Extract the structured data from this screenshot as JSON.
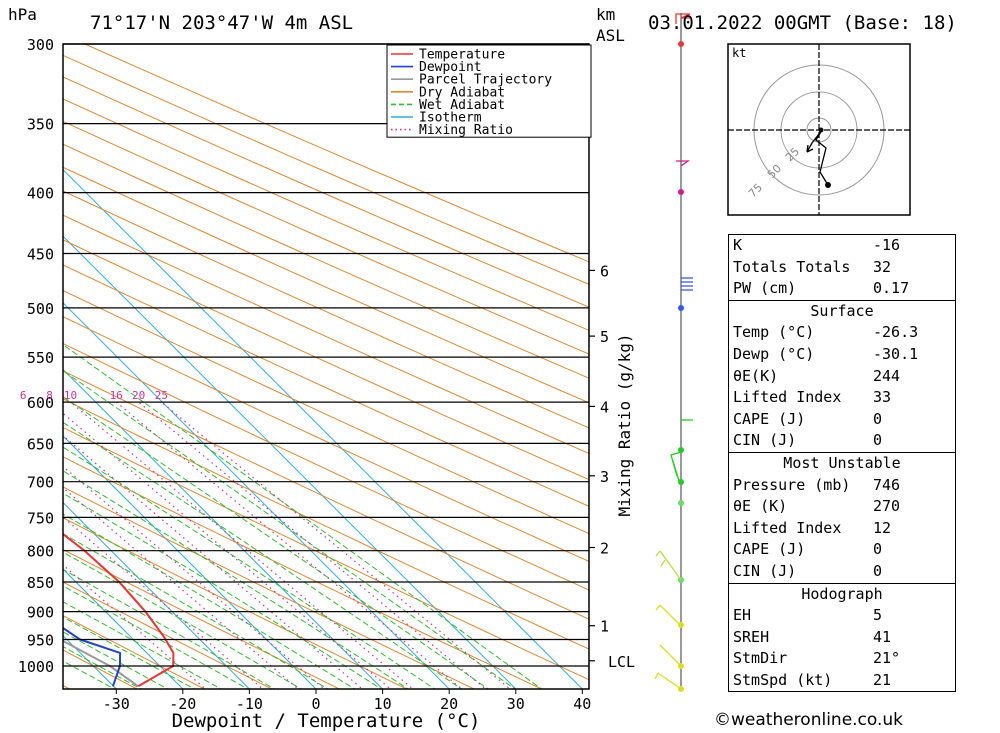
{
  "header": {
    "pressure_unit": "hPa",
    "location": "71°17'N  203°47'W  4m  ASL",
    "height_unit_line1": "km",
    "height_unit_line2": "ASL",
    "datetime": "03.01.2022  00GMT  (Base: 18)"
  },
  "chart_data": {
    "type": "skew-t",
    "xlabel": "Dewpoint / Temperature (°C)",
    "ylabel_left": "hPa",
    "mixing_ratio_label": "Mixing Ratio (g/kg)",
    "pressure_ticks": [
      300,
      350,
      400,
      450,
      500,
      550,
      600,
      650,
      700,
      750,
      800,
      850,
      900,
      950,
      1000
    ],
    "temp_ticks": [
      -30,
      -20,
      -10,
      0,
      10,
      20,
      30,
      40
    ],
    "xlim": [
      -38,
      41
    ],
    "ylim": [
      1050,
      300
    ],
    "km_ticks": [
      {
        "label": "6",
        "p": 465
      },
      {
        "label": "5",
        "p": 528
      },
      {
        "label": "4",
        "p": 605
      },
      {
        "label": "3",
        "p": 692
      },
      {
        "label": "2",
        "p": 795
      },
      {
        "label": "1",
        "p": 925
      },
      {
        "label": "LCL",
        "p": 990
      }
    ],
    "mixing_ratio_values": [
      "1",
      "2",
      "3",
      "4",
      "6",
      "8",
      "10",
      "16",
      "20",
      "25"
    ],
    "legend": [
      {
        "name": "Temperature",
        "color": "#ee3333",
        "style": "solid"
      },
      {
        "name": "Dewpoint",
        "color": "#2244cc",
        "style": "solid"
      },
      {
        "name": "Parcel Trajectory",
        "color": "#999999",
        "style": "solid"
      },
      {
        "name": "Dry Adiabat",
        "color": "#dd8833",
        "style": "solid"
      },
      {
        "name": "Wet Adiabat",
        "color": "#33bb33",
        "style": "dashed"
      },
      {
        "name": "Isotherm",
        "color": "#33aadd",
        "style": "solid"
      },
      {
        "name": "Mixing Ratio",
        "color": "#cc3399",
        "style": "dotted"
      }
    ],
    "legend_position": "top-right",
    "series": [
      {
        "name": "Temperature",
        "points": [
          [
            -26.3,
            1040
          ],
          [
            -18,
            1000
          ],
          [
            -16,
            975
          ],
          [
            -15,
            945
          ],
          [
            -14,
            900
          ],
          [
            -13.5,
            850
          ],
          [
            -14,
            800
          ],
          [
            -15.5,
            750
          ],
          [
            -17.5,
            700
          ],
          [
            -19.5,
            650
          ],
          [
            -21,
            600
          ],
          [
            -23,
            560
          ],
          [
            -23.5,
            545
          ],
          [
            -25,
            520
          ],
          [
            -26,
            500
          ],
          [
            -28,
            450
          ],
          [
            -31,
            400
          ],
          [
            -34,
            350
          ],
          [
            -37,
            300
          ]
        ]
      },
      {
        "name": "Dewpoint",
        "points": [
          [
            -30.1,
            1040
          ],
          [
            -26,
            1000
          ],
          [
            -24,
            975
          ],
          [
            -28,
            950
          ],
          [
            -29,
            925
          ],
          [
            -28,
            905
          ],
          [
            -26,
            880
          ],
          [
            -23,
            860
          ],
          [
            -27,
            840
          ],
          [
            -29,
            800
          ],
          [
            -31,
            750
          ],
          [
            -32,
            700
          ],
          [
            -31,
            650
          ],
          [
            -30,
            600
          ],
          [
            -25,
            585
          ],
          [
            -29,
            580
          ],
          [
            -35,
            555
          ],
          [
            -43,
            538
          ],
          [
            -36,
            530
          ],
          [
            -47,
            515
          ],
          [
            -45,
            500
          ],
          [
            -46,
            485
          ],
          [
            -48,
            450
          ],
          [
            -52,
            400
          ],
          [
            -56,
            350
          ],
          [
            -59,
            300
          ]
        ]
      },
      {
        "name": "Parcel Trajectory",
        "points": [
          [
            -26.3,
            1040
          ],
          [
            -27.5,
            1000
          ],
          [
            -31,
            950
          ],
          [
            -35,
            900
          ],
          [
            -39,
            850
          ],
          [
            -44,
            800
          ],
          [
            -48,
            750
          ]
        ]
      }
    ]
  },
  "hodograph": {
    "unit": "kt",
    "ring_labels": [
      "25",
      "50",
      "75"
    ]
  },
  "indices": {
    "k_label": "K",
    "k_value": "-16",
    "tt_label": "Totals Totals",
    "tt_value": "32",
    "pw_label": "PW (cm)",
    "pw_value": "0.17"
  },
  "surface": {
    "title": "Surface",
    "temp_label": "Temp (°C)",
    "temp_value": "-26.3",
    "dewp_label": "Dewp (°C)",
    "dewp_value": "-30.1",
    "theta_label": "θE(K)",
    "theta_value": "244",
    "li_label": "Lifted Index",
    "li_value": "33",
    "cape_label": "CAPE (J)",
    "cape_value": "0",
    "cin_label": "CIN (J)",
    "cin_value": "0"
  },
  "most_unstable": {
    "title": "Most Unstable",
    "pressure_label": "Pressure (mb)",
    "pressure_value": "746",
    "theta_label": "θE (K)",
    "theta_value": "270",
    "li_label": "Lifted Index",
    "li_value": "12",
    "cape_label": "CAPE (J)",
    "cape_value": "0",
    "cin_label": "CIN (J)",
    "cin_value": "0"
  },
  "hodograph_stats": {
    "title": "Hodograph",
    "eh_label": "EH",
    "eh_value": "5",
    "sreh_label": "SREH",
    "sreh_value": "41",
    "stmdir_label": "StmDir",
    "stmdir_value": "21°",
    "stmspd_label": "StmSpd (kt)",
    "stmspd_value": "21"
  },
  "credit": "©weatheronline.co.uk"
}
